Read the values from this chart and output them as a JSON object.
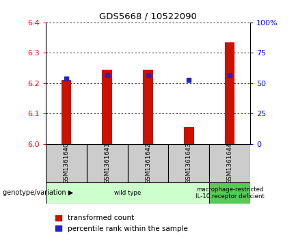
{
  "title": "GDS5668 / 10522090",
  "samples": [
    "GSM1361640",
    "GSM1361641",
    "GSM1361642",
    "GSM1361643",
    "GSM1361644"
  ],
  "red_values": [
    6.21,
    6.245,
    6.245,
    6.055,
    6.335
  ],
  "blue_values": [
    6.215,
    6.225,
    6.225,
    6.21,
    6.225
  ],
  "ylim_left": [
    6.0,
    6.4
  ],
  "ylim_right": [
    0,
    100
  ],
  "yticks_left": [
    6.0,
    6.1,
    6.2,
    6.3,
    6.4
  ],
  "yticks_right": [
    0,
    25,
    50,
    75,
    100
  ],
  "red_color": "#cc1100",
  "blue_color": "#2222cc",
  "genotype_groups": [
    {
      "label": "wild type",
      "samples_range": [
        0,
        3
      ],
      "color": "#ccffcc"
    },
    {
      "label": "macrophage-restricted\nIL-10 receptor deficient",
      "samples_range": [
        4,
        4
      ],
      "color": "#55cc55"
    }
  ],
  "bg_color": "#ffffff",
  "xlabel_area_bg": "#cccccc",
  "legend_red_label": "transformed count",
  "legend_blue_label": "percentile rank within the sample",
  "genotype_label": "genotype/variation"
}
